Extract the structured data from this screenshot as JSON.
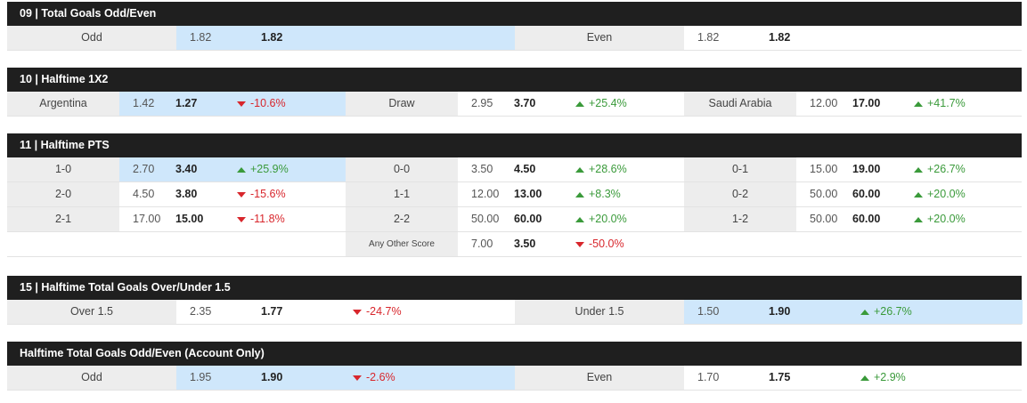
{
  "markets": [
    {
      "title": "09 | Total Goals Odd/Even",
      "layout": "two",
      "rows": [
        [
          {
            "label": "Odd",
            "open": "1.82",
            "current": "1.82",
            "change": "",
            "dir": "",
            "hl": true
          },
          {
            "label": "Even",
            "open": "1.82",
            "current": "1.82",
            "change": "",
            "dir": "",
            "hl": false
          }
        ]
      ]
    },
    {
      "title": "10 | Halftime 1X2",
      "layout": "three",
      "rows": [
        [
          {
            "label": "Argentina",
            "open": "1.42",
            "current": "1.27",
            "change": "-10.6%",
            "dir": "down",
            "hl": true
          },
          {
            "label": "Draw",
            "open": "2.95",
            "current": "3.70",
            "change": "+25.4%",
            "dir": "up",
            "hl": false
          },
          {
            "label": "Saudi Arabia",
            "open": "12.00",
            "current": "17.00",
            "change": "+41.7%",
            "dir": "up",
            "hl": false
          }
        ]
      ]
    },
    {
      "title": "11 | Halftime PTS",
      "layout": "three",
      "rows": [
        [
          {
            "label": "1-0",
            "open": "2.70",
            "current": "3.40",
            "change": "+25.9%",
            "dir": "up",
            "hl": true
          },
          {
            "label": "0-0",
            "open": "3.50",
            "current": "4.50",
            "change": "+28.6%",
            "dir": "up",
            "hl": false
          },
          {
            "label": "0-1",
            "open": "15.00",
            "current": "19.00",
            "change": "+26.7%",
            "dir": "up",
            "hl": false
          }
        ],
        [
          {
            "label": "2-0",
            "open": "4.50",
            "current": "3.80",
            "change": "-15.6%",
            "dir": "down",
            "hl": false
          },
          {
            "label": "1-1",
            "open": "12.00",
            "current": "13.00",
            "change": "+8.3%",
            "dir": "up",
            "hl": false
          },
          {
            "label": "0-2",
            "open": "50.00",
            "current": "60.00",
            "change": "+20.0%",
            "dir": "up",
            "hl": false
          }
        ],
        [
          {
            "label": "2-1",
            "open": "17.00",
            "current": "15.00",
            "change": "-11.8%",
            "dir": "down",
            "hl": false
          },
          {
            "label": "2-2",
            "open": "50.00",
            "current": "60.00",
            "change": "+20.0%",
            "dir": "up",
            "hl": false
          },
          {
            "label": "1-2",
            "open": "50.00",
            "current": "60.00",
            "change": "+20.0%",
            "dir": "up",
            "hl": false
          }
        ],
        [
          null,
          {
            "label": "Any Other Score",
            "open": "7.00",
            "current": "3.50",
            "change": "-50.0%",
            "dir": "down",
            "hl": false,
            "small": true
          },
          null
        ]
      ]
    },
    {
      "title": "15 | Halftime Total Goals Over/Under 1.5",
      "layout": "two",
      "rows": [
        [
          {
            "label": "Over 1.5",
            "open": "2.35",
            "current": "1.77",
            "change": "-24.7%",
            "dir": "down",
            "hl": false
          },
          {
            "label": "Under 1.5",
            "open": "1.50",
            "current": "1.90",
            "change": "+26.7%",
            "dir": "up",
            "hl": true
          }
        ]
      ]
    },
    {
      "title": "Halftime Total Goals Odd/Even (Account Only)",
      "layout": "two",
      "rows": [
        [
          {
            "label": "Odd",
            "open": "1.95",
            "current": "1.90",
            "change": "-2.6%",
            "dir": "down",
            "hl": true
          },
          {
            "label": "Even",
            "open": "1.70",
            "current": "1.75",
            "change": "+2.9%",
            "dir": "up",
            "hl": false
          }
        ]
      ]
    }
  ],
  "colors": {
    "header_bg": "#1f1f1f",
    "label_bg": "#ededed",
    "highlight_bg": "#cfe7fb",
    "up": "#3a9a3a",
    "down": "#d8262c"
  }
}
